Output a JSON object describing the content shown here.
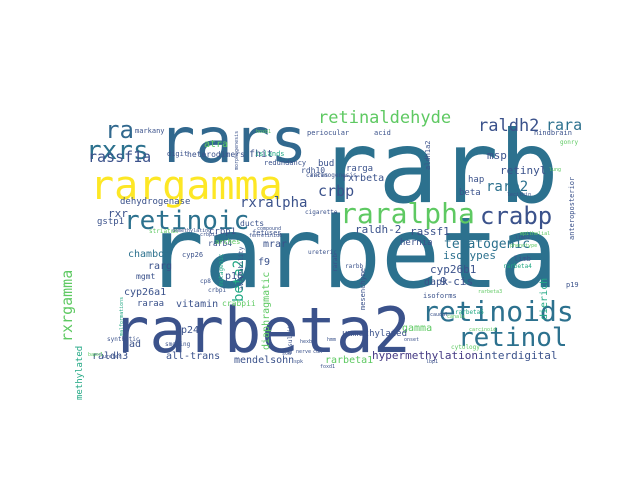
{
  "word_cloud": {
    "words": [
      {
        "text": "rarbeta",
        "color": "#2c718e"
      },
      {
        "text": "rarb",
        "color": "#2c718e"
      },
      {
        "text": "rarbeta2",
        "color": "#3b528b"
      },
      {
        "text": "rars",
        "color": "#31688e"
      },
      {
        "text": "rargamma",
        "color": "#fde725"
      },
      {
        "text": "retinoids",
        "color": "#2c718e"
      },
      {
        "text": "retinol",
        "color": "#2c718e"
      },
      {
        "text": "raralpha",
        "color": "#5ec962"
      },
      {
        "text": "crabp",
        "color": "#3b528b"
      },
      {
        "text": "retinoic",
        "color": "#2c718e"
      },
      {
        "text": "rxrs",
        "color": "#2c718e"
      },
      {
        "text": "ra",
        "color": "#31688e"
      },
      {
        "text": "retinaldehyde",
        "color": "#5ec962"
      },
      {
        "text": "raldh2",
        "color": "#3b528b"
      },
      {
        "text": "rxrgamma",
        "color": "#5ec962"
      },
      {
        "text": "beta2",
        "color": "#22a884"
      },
      {
        "text": "rara",
        "color": "#2c718e"
      },
      {
        "text": "rassf1a",
        "color": "#3b528b"
      },
      {
        "text": "crbp",
        "color": "#3b528b"
      },
      {
        "text": "rarb2",
        "color": "#2c718e"
      },
      {
        "text": "rxralpha",
        "color": "#3b528b"
      },
      {
        "text": "teratogenic",
        "color": "#2c718e"
      },
      {
        "text": "retinyl",
        "color": "#3b528b"
      },
      {
        "text": "msp",
        "color": "#3b528b"
      },
      {
        "text": "rxrbeta",
        "color": "#3b528b"
      },
      {
        "text": "raldh-2",
        "color": "#3b528b"
      },
      {
        "text": "rassf1",
        "color": "#3b528b"
      },
      {
        "text": "cyp26b1",
        "color": "#3b528b"
      },
      {
        "text": "isotypes",
        "color": "#2c718e"
      },
      {
        "text": "9-cis",
        "color": "#3b528b"
      },
      {
        "text": "dapk",
        "color": "#3b528b"
      },
      {
        "text": "gamma",
        "color": "#5ec962"
      },
      {
        "text": "hypermethylation",
        "color": "#443983"
      },
      {
        "text": "interdigital",
        "color": "#3b528b"
      },
      {
        "text": "rarbeta1",
        "color": "#5ec962"
      },
      {
        "text": "mendelsohn",
        "color": "#3b528b"
      },
      {
        "text": "all-trans",
        "color": "#3b528b"
      },
      {
        "text": "raldh3",
        "color": "#3b528b"
      },
      {
        "text": "vad",
        "color": "#3b528b"
      },
      {
        "text": "3p24",
        "color": "#3b528b"
      },
      {
        "text": "vitamin",
        "color": "#3b528b"
      },
      {
        "text": "cyp26a1",
        "color": "#3b528b"
      },
      {
        "text": "raraa",
        "color": "#3b528b"
      },
      {
        "text": "p16",
        "color": "#3b528b"
      },
      {
        "text": "rarg",
        "color": "#3b528b"
      },
      {
        "text": "chambon",
        "color": "#2c718e"
      },
      {
        "text": "dehydrogenase",
        "color": "#3b528b"
      },
      {
        "text": "rxr",
        "color": "#3b528b"
      },
      {
        "text": "atra",
        "color": "#5ec962"
      },
      {
        "text": "fhit",
        "color": "#3b528b"
      },
      {
        "text": "f9",
        "color": "#3b528b"
      },
      {
        "text": "mrar",
        "color": "#3b528b"
      },
      {
        "text": "diaphragmatic",
        "color": "#5ec962"
      },
      {
        "text": "unmethylated",
        "color": "#3b528b"
      },
      {
        "text": "dierich",
        "color": "#22a884"
      },
      {
        "text": "methylated",
        "color": "#22a884"
      },
      {
        "text": "hernia",
        "color": "#3b528b"
      },
      {
        "text": "bud",
        "color": "#3b528b"
      },
      {
        "text": "rarga",
        "color": "#3b528b"
      },
      {
        "text": "beta",
        "color": "#3b528b"
      },
      {
        "text": "hap",
        "color": "#3b528b"
      },
      {
        "text": "crbp1",
        "color": "#3b528b"
      },
      {
        "text": "gstp1",
        "color": "#3b528b"
      },
      {
        "text": "mgmt",
        "color": "#3b528b"
      },
      {
        "text": "heterodimers",
        "color": "#3b528b"
      },
      {
        "text": "rdh10",
        "color": "#3b528b"
      },
      {
        "text": "rarb4",
        "color": "#3b528b"
      },
      {
        "text": "crabpii",
        "color": "#5ec962"
      },
      {
        "text": "ducts",
        "color": "#3b528b"
      },
      {
        "text": "fetuses",
        "color": "#3b528b"
      },
      {
        "text": "digit",
        "color": "#3b528b"
      },
      {
        "text": "markany",
        "color": "#3b528b"
      },
      {
        "text": "redundancy",
        "color": "#3b528b"
      },
      {
        "text": "periocular",
        "color": "#3b528b"
      },
      {
        "text": "acid",
        "color": "#3b528b"
      },
      {
        "text": "hindbrain",
        "color": "#3b528b"
      },
      {
        "text": "arches",
        "color": "#5ec962"
      },
      {
        "text": "cyp26",
        "color": "#3b528b"
      },
      {
        "text": "mesenchyme",
        "color": "#3b528b"
      },
      {
        "text": "limb",
        "color": "#3b528b"
      },
      {
        "text": "isoforms",
        "color": "#3b528b"
      },
      {
        "text": "p19",
        "color": "#3b528b"
      },
      {
        "text": "islands",
        "color": "#22a884"
      },
      {
        "text": "cytology",
        "color": "#5ec962"
      },
      {
        "text": "bisulfite",
        "color": "#3b528b"
      },
      {
        "text": "smoking",
        "color": "#3b528b"
      },
      {
        "text": "synthetic",
        "color": "#3b528b"
      },
      {
        "text": "striatum",
        "color": "#5ec962"
      },
      {
        "text": "anteroposterior",
        "color": "#3b528b"
      },
      {
        "text": "aldh1a2",
        "color": "#3b528b"
      },
      {
        "text": "gonry",
        "color": "#5ec962"
      },
      {
        "text": "carcinogenesis",
        "color": "#3b528b"
      },
      {
        "text": "rarbeta4",
        "color": "#22a884"
      },
      {
        "text": "rarbeta5",
        "color": "#22a884"
      },
      {
        "text": "rarab",
        "color": "#3b528b"
      },
      {
        "text": "ureteric",
        "color": "#3b528b"
      },
      {
        "text": "mutagenic",
        "color": "#22a884"
      },
      {
        "text": "availability",
        "color": "#3b528b"
      },
      {
        "text": "cigarette",
        "color": "#3b528b"
      },
      {
        "text": "rarbb",
        "color": "#3b528b"
      },
      {
        "text": "rares",
        "color": "#3b528b"
      },
      {
        "text": "crbpi",
        "color": "#3b528b"
      },
      {
        "text": "cp8",
        "color": "#3b528b"
      },
      {
        "text": "crbpii",
        "color": "#3b528b"
      },
      {
        "text": "hoxb1",
        "color": "#5ec962"
      },
      {
        "text": "bapx1",
        "color": "#5ec962"
      },
      {
        "text": "canals",
        "color": "#5ec962"
      },
      {
        "text": "phenotype",
        "color": "#5ec962"
      },
      {
        "text": "epithelial",
        "color": "#5ec962"
      },
      {
        "text": "morphogenesis",
        "color": "#3b528b"
      },
      {
        "text": "lung",
        "color": "#5ec962"
      },
      {
        "text": "rarbeta3",
        "color": "#5ec962"
      },
      {
        "text": "compound",
        "color": "#3b528b"
      },
      {
        "text": "demethylating",
        "color": "#3b528b"
      },
      {
        "text": "fenretinide",
        "color": "#3b528b"
      },
      {
        "text": "carcinoid",
        "color": "#5ec962"
      },
      {
        "text": "lecithin",
        "color": "#3b528b"
      },
      {
        "text": "malformations",
        "color": "#22a884"
      },
      {
        "text": "caudal",
        "color": "#3b528b"
      },
      {
        "text": "ureter",
        "color": "#3b528b"
      },
      {
        "text": "foxd1",
        "color": "#3b528b"
      },
      {
        "text": "nerve",
        "color": "#3b528b"
      },
      {
        "text": "limb2",
        "color": "#3b528b"
      },
      {
        "text": "scd",
        "color": "#3b528b"
      },
      {
        "text": "onset",
        "color": "#3b528b"
      },
      {
        "text": "cdk",
        "color": "#3b528b"
      },
      {
        "text": "spk",
        "color": "#3b528b"
      },
      {
        "text": "hexb",
        "color": "#3b528b"
      },
      {
        "text": "hmm",
        "color": "#3b528b"
      },
      {
        "text": "lbp1",
        "color": "#3b528b"
      }
    ]
  }
}
